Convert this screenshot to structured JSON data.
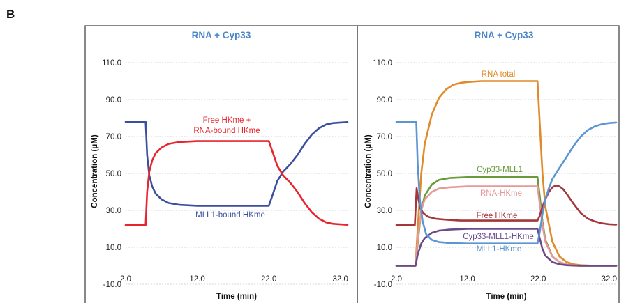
{
  "figure": {
    "panel_letter": "B"
  },
  "colors": {
    "title": "#4a86c8",
    "MLL1-bound HKme": "#3a4f9e",
    "Free HKme + RNA-bound HKme": "#e8242c",
    "RNA total": "#e08a2a",
    "Cyp33-MLL1": "#6a9a3a",
    "RNA-HKme": "#e49a98",
    "Free HKme": "#a4373a",
    "Cyp33-MLL1-HKme": "#6a4a8a",
    "MLL1-HKme": "#5b96d2"
  },
  "chart_data": [
    {
      "type": "line",
      "title": "RNA + Cyp33",
      "xlabel": "Time (min)",
      "ylabel": "Concentration (μM)",
      "xlim": [
        2.0,
        33.0
      ],
      "ylim": [
        -10.0,
        110.0
      ],
      "xticks": [
        "2.0",
        "12.0",
        "22.0",
        "32.0"
      ],
      "yticks": [
        "-10.0",
        "10.0",
        "30.0",
        "50.0",
        "70.0",
        "90.0",
        "110.0"
      ],
      "grid": true,
      "series": [
        {
          "name": "MLL1-bound HKme",
          "annotation": [
            "MLL1-bound HKme"
          ],
          "x": [
            2.0,
            4.5,
            4.8,
            5.0,
            5.3,
            5.7,
            6.2,
            7.0,
            8.0,
            9.5,
            12.0,
            16.0,
            21.0,
            22.0,
            22.5,
            23.2,
            24.0,
            25.0,
            26.0,
            27.0,
            28.0,
            29.0,
            30.0,
            31.0,
            32.0,
            33.0
          ],
          "y": [
            78.0,
            78.0,
            78.0,
            60.0,
            49.0,
            43.0,
            39.0,
            36.0,
            34.0,
            33.0,
            32.5,
            32.5,
            32.5,
            32.5,
            38.0,
            46.0,
            51.0,
            55.0,
            60.0,
            66.0,
            71.0,
            74.5,
            76.5,
            77.3,
            77.6,
            77.8
          ]
        },
        {
          "name": "Free HKme + RNA-bound HKme",
          "annotation": [
            "Free HKme +",
            "RNA-bound HKme"
          ],
          "x": [
            2.0,
            4.5,
            4.8,
            5.0,
            5.3,
            5.7,
            6.2,
            7.0,
            8.0,
            9.5,
            12.0,
            16.0,
            21.0,
            22.0,
            22.5,
            23.2,
            24.0,
            25.0,
            26.0,
            27.0,
            28.0,
            29.0,
            30.0,
            31.0,
            32.0,
            33.0
          ],
          "y": [
            22.0,
            22.0,
            22.0,
            40.0,
            51.0,
            57.0,
            61.0,
            64.0,
            66.0,
            67.0,
            67.5,
            67.5,
            67.5,
            67.5,
            62.0,
            54.0,
            49.0,
            45.0,
            40.0,
            34.0,
            29.0,
            25.5,
            23.5,
            22.7,
            22.4,
            22.2
          ]
        }
      ]
    },
    {
      "type": "line",
      "title": "RNA + Cyp33",
      "xlabel": "Time (min)",
      "ylabel": "Concentration (μM)",
      "xlim": [
        2.0,
        33.0
      ],
      "ylim": [
        -10.0,
        110.0
      ],
      "xticks": [
        "2.0",
        "12.0",
        "22.0",
        "32.0"
      ],
      "yticks": [
        "-10.0",
        "10.0",
        "30.0",
        "50.0",
        "70.0",
        "90.0",
        "110.0"
      ],
      "grid": true,
      "series": [
        {
          "name": "RNA total",
          "annotation": [
            "RNA total"
          ],
          "x": [
            2.0,
            4.7,
            5.0,
            5.5,
            6.0,
            7.0,
            8.0,
            9.0,
            10.0,
            11.0,
            12.0,
            14.0,
            18.0,
            21.9,
            22.2,
            22.6,
            23.0,
            24.0,
            25.0,
            26.0,
            27.0,
            28.0,
            30.0,
            33.0
          ],
          "y": [
            0.0,
            0.0,
            20.0,
            50.0,
            66.0,
            82.0,
            91.0,
            95.5,
            98.0,
            99.0,
            99.5,
            100.0,
            100.0,
            100.0,
            78.0,
            50.0,
            32.0,
            13.0,
            5.0,
            2.0,
            0.8,
            0.3,
            0.0,
            0.0
          ]
        },
        {
          "name": "Cyp33-MLL1",
          "annotation": [
            "Cyp33-MLL1"
          ],
          "x": [
            2.0,
            4.7,
            5.0,
            5.5,
            6.0,
            7.0,
            8.0,
            9.5,
            12.0,
            16.0,
            21.9,
            22.2,
            22.6,
            23.0,
            24.0,
            25.0,
            26.0,
            27.0,
            28.0,
            33.0
          ],
          "y": [
            0.0,
            0.0,
            12.0,
            30.0,
            38.0,
            44.0,
            46.5,
            47.5,
            48.0,
            48.0,
            48.0,
            38.0,
            24.0,
            14.0,
            5.0,
            2.0,
            0.7,
            0.2,
            0.0,
            0.0
          ]
        },
        {
          "name": "RNA-HKme",
          "annotation": [
            "RNA-HKme"
          ],
          "x": [
            2.0,
            4.7,
            5.0,
            5.5,
            6.0,
            7.0,
            8.0,
            9.5,
            12.0,
            16.0,
            21.9,
            22.2,
            22.6,
            23.0,
            24.0,
            25.0,
            26.0,
            27.0,
            28.0,
            33.0
          ],
          "y": [
            0.0,
            0.0,
            14.0,
            30.0,
            36.0,
            40.0,
            41.8,
            42.5,
            43.0,
            43.0,
            43.0,
            34.0,
            22.0,
            13.0,
            5.0,
            2.0,
            0.7,
            0.2,
            0.0,
            0.0
          ]
        },
        {
          "name": "Free HKme",
          "annotation": [
            "Free HKme"
          ],
          "x": [
            2.0,
            4.6,
            4.85,
            5.1,
            5.4,
            5.8,
            6.5,
            7.5,
            9.0,
            11.0,
            14.0,
            21.9,
            22.2,
            22.6,
            23.0,
            23.5,
            24.0,
            24.5,
            25.0,
            25.5,
            26.0,
            27.0,
            28.0,
            29.0,
            30.0,
            31.0,
            32.0,
            33.0
          ],
          "y": [
            22.0,
            22.0,
            42.0,
            36.0,
            31.0,
            28.5,
            26.5,
            25.5,
            25.0,
            24.5,
            24.5,
            24.5,
            27.0,
            32.0,
            36.0,
            40.0,
            42.5,
            43.5,
            43.0,
            41.5,
            39.0,
            33.5,
            28.5,
            25.5,
            24.0,
            23.0,
            22.5,
            22.3
          ]
        },
        {
          "name": "Cyp33-MLL1-HKme",
          "annotation": [
            "Cyp33-MLL1-HKme"
          ],
          "x": [
            2.0,
            4.7,
            5.0,
            5.5,
            6.0,
            7.0,
            8.0,
            9.5,
            12.0,
            16.0,
            21.9,
            22.2,
            22.6,
            23.0,
            24.0,
            25.0,
            26.0,
            27.0,
            28.0,
            33.0
          ],
          "y": [
            0.0,
            0.0,
            6.0,
            12.0,
            15.0,
            17.8,
            19.0,
            19.6,
            20.0,
            20.0,
            20.0,
            15.0,
            9.0,
            5.5,
            2.0,
            0.8,
            0.3,
            0.1,
            0.0,
            0.0
          ]
        },
        {
          "name": "MLL1-HKme",
          "annotation": [
            "MLL1-HKme"
          ],
          "x": [
            2.0,
            4.5,
            4.8,
            5.0,
            5.3,
            5.7,
            6.2,
            7.0,
            8.0,
            9.5,
            12.0,
            16.0,
            21.9,
            22.2,
            22.6,
            23.0,
            23.5,
            24.0,
            25.0,
            26.0,
            27.0,
            28.0,
            29.0,
            30.0,
            31.0,
            32.0,
            33.0
          ],
          "y": [
            78.0,
            78.0,
            78.0,
            55.0,
            36.0,
            24.0,
            17.0,
            14.0,
            12.8,
            12.3,
            12.0,
            12.0,
            12.0,
            18.0,
            28.0,
            36.0,
            42.0,
            47.0,
            53.0,
            59.0,
            65.0,
            70.0,
            73.5,
            75.5,
            76.7,
            77.3,
            77.6
          ]
        }
      ]
    }
  ]
}
